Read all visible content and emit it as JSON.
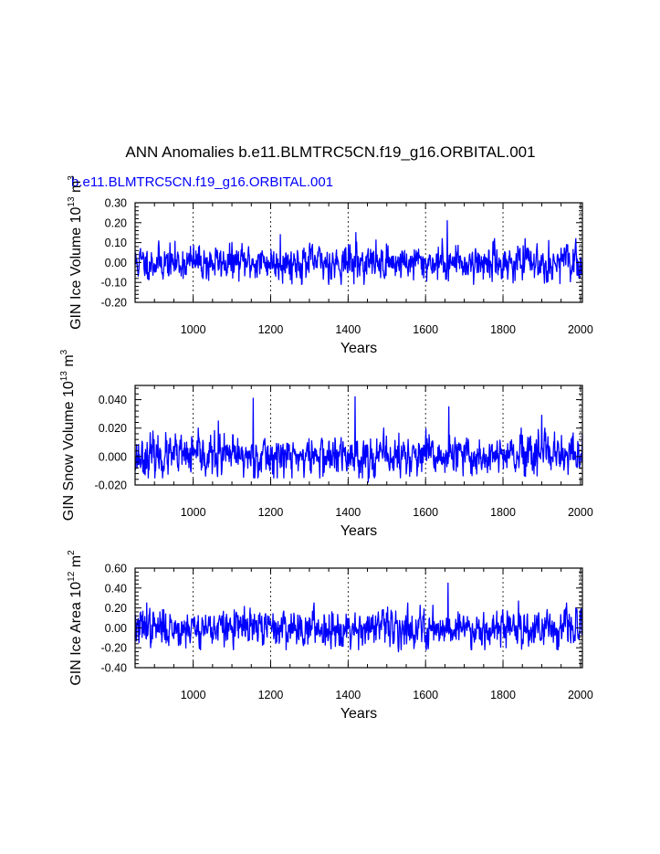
{
  "figure": {
    "title": "ANN Anomalies b.e11.BLMTRC5CN.f19_g16.ORBITAL.001",
    "case_label": "b.e11.BLMTRC5CN.f19_g16.ORBITAL.001",
    "line_color": "#0000ff"
  },
  "chart_data": [
    {
      "type": "line",
      "title": "b.e11.BLMTRC5CN.f19_g16.ORBITAL.001",
      "xlabel": "Years",
      "ylabel": {
        "prefix": "GIN Ice Volume 10",
        "exp1": "13",
        "mid": " m",
        "exp2": "3"
      },
      "xlim": [
        850,
        2005
      ],
      "ylim": [
        -0.2,
        0.3
      ],
      "yticks": [
        -0.2,
        -0.1,
        0.0,
        0.1,
        0.2,
        0.3
      ],
      "ytick_labels": [
        "-0.20",
        "-0.10",
        "0.00",
        "0.10",
        "0.20",
        "0.30"
      ],
      "xticks": [
        1000,
        1200,
        1400,
        1600,
        1800,
        2000
      ],
      "xtick_labels": [
        "1000",
        "1200",
        "1400",
        "1600",
        "1800",
        "2000"
      ],
      "grid": "vertical dashed at major x ticks",
      "series": [
        {
          "name": "GIN Ice Volume anomaly",
          "x_start": 850,
          "x_step": 1,
          "n_points": 1156,
          "noise_sd": 0.04,
          "typical_range": [
            -0.11,
            0.12
          ],
          "peaks": [
            {
              "x": 1656,
              "value": 0.21
            },
            {
              "x": 1420,
              "value": 0.15
            },
            {
              "x": 1225,
              "value": 0.14
            },
            {
              "x": 1040,
              "value": -0.09
            }
          ],
          "seed": 11
        }
      ]
    },
    {
      "type": "line",
      "xlabel": "Years",
      "ylabel": {
        "prefix": "GIN Snow Volume 10",
        "exp1": "13",
        "mid": " m",
        "exp2": "3"
      },
      "xlim": [
        850,
        2005
      ],
      "ylim": [
        -0.02,
        0.05
      ],
      "yticks": [
        -0.02,
        0.0,
        0.02,
        0.04
      ],
      "ytick_labels": [
        "-0.020",
        "0.000",
        "0.020",
        "0.040"
      ],
      "xticks": [
        1000,
        1200,
        1400,
        1600,
        1800,
        2000
      ],
      "xtick_labels": [
        "1000",
        "1200",
        "1400",
        "1600",
        "1800",
        "2000"
      ],
      "grid": "vertical dashed at major x ticks",
      "series": [
        {
          "name": "GIN Snow Volume anomaly",
          "x_start": 850,
          "x_step": 1,
          "n_points": 1156,
          "noise_sd": 0.0065,
          "typical_range": [
            -0.015,
            0.02
          ],
          "peaks": [
            {
              "x": 1155,
              "value": 0.041
            },
            {
              "x": 1418,
              "value": 0.042
            },
            {
              "x": 1660,
              "value": 0.035
            },
            {
              "x": 1065,
              "value": 0.025
            },
            {
              "x": 1900,
              "value": 0.029
            },
            {
              "x": 1452,
              "value": -0.018
            }
          ],
          "seed": 23
        }
      ]
    },
    {
      "type": "line",
      "xlabel": "Years",
      "ylabel": {
        "prefix": "GIN Ice Area 10",
        "exp1": "12",
        "mid": " m",
        "exp2": "2"
      },
      "xlim": [
        850,
        2005
      ],
      "ylim": [
        -0.4,
        0.6
      ],
      "yticks": [
        -0.4,
        -0.2,
        0.0,
        0.2,
        0.4,
        0.6
      ],
      "ytick_labels": [
        "-0.40",
        "-0.20",
        "0.00",
        "0.20",
        "0.40",
        "0.60"
      ],
      "xticks": [
        1000,
        1200,
        1400,
        1600,
        1800,
        2000
      ],
      "xtick_labels": [
        "1000",
        "1200",
        "1400",
        "1600",
        "1800",
        "2000"
      ],
      "grid": "vertical dashed at major x ticks",
      "series": [
        {
          "name": "GIN Ice Area anomaly",
          "x_start": 850,
          "x_step": 1,
          "n_points": 1156,
          "noise_sd": 0.085,
          "typical_range": [
            -0.22,
            0.25
          ],
          "peaks": [
            {
              "x": 1658,
              "value": 0.45
            },
            {
              "x": 1840,
              "value": 0.27
            },
            {
              "x": 880,
              "value": 0.25
            },
            {
              "x": 1530,
              "value": -0.24
            }
          ],
          "seed": 37
        }
      ]
    }
  ]
}
